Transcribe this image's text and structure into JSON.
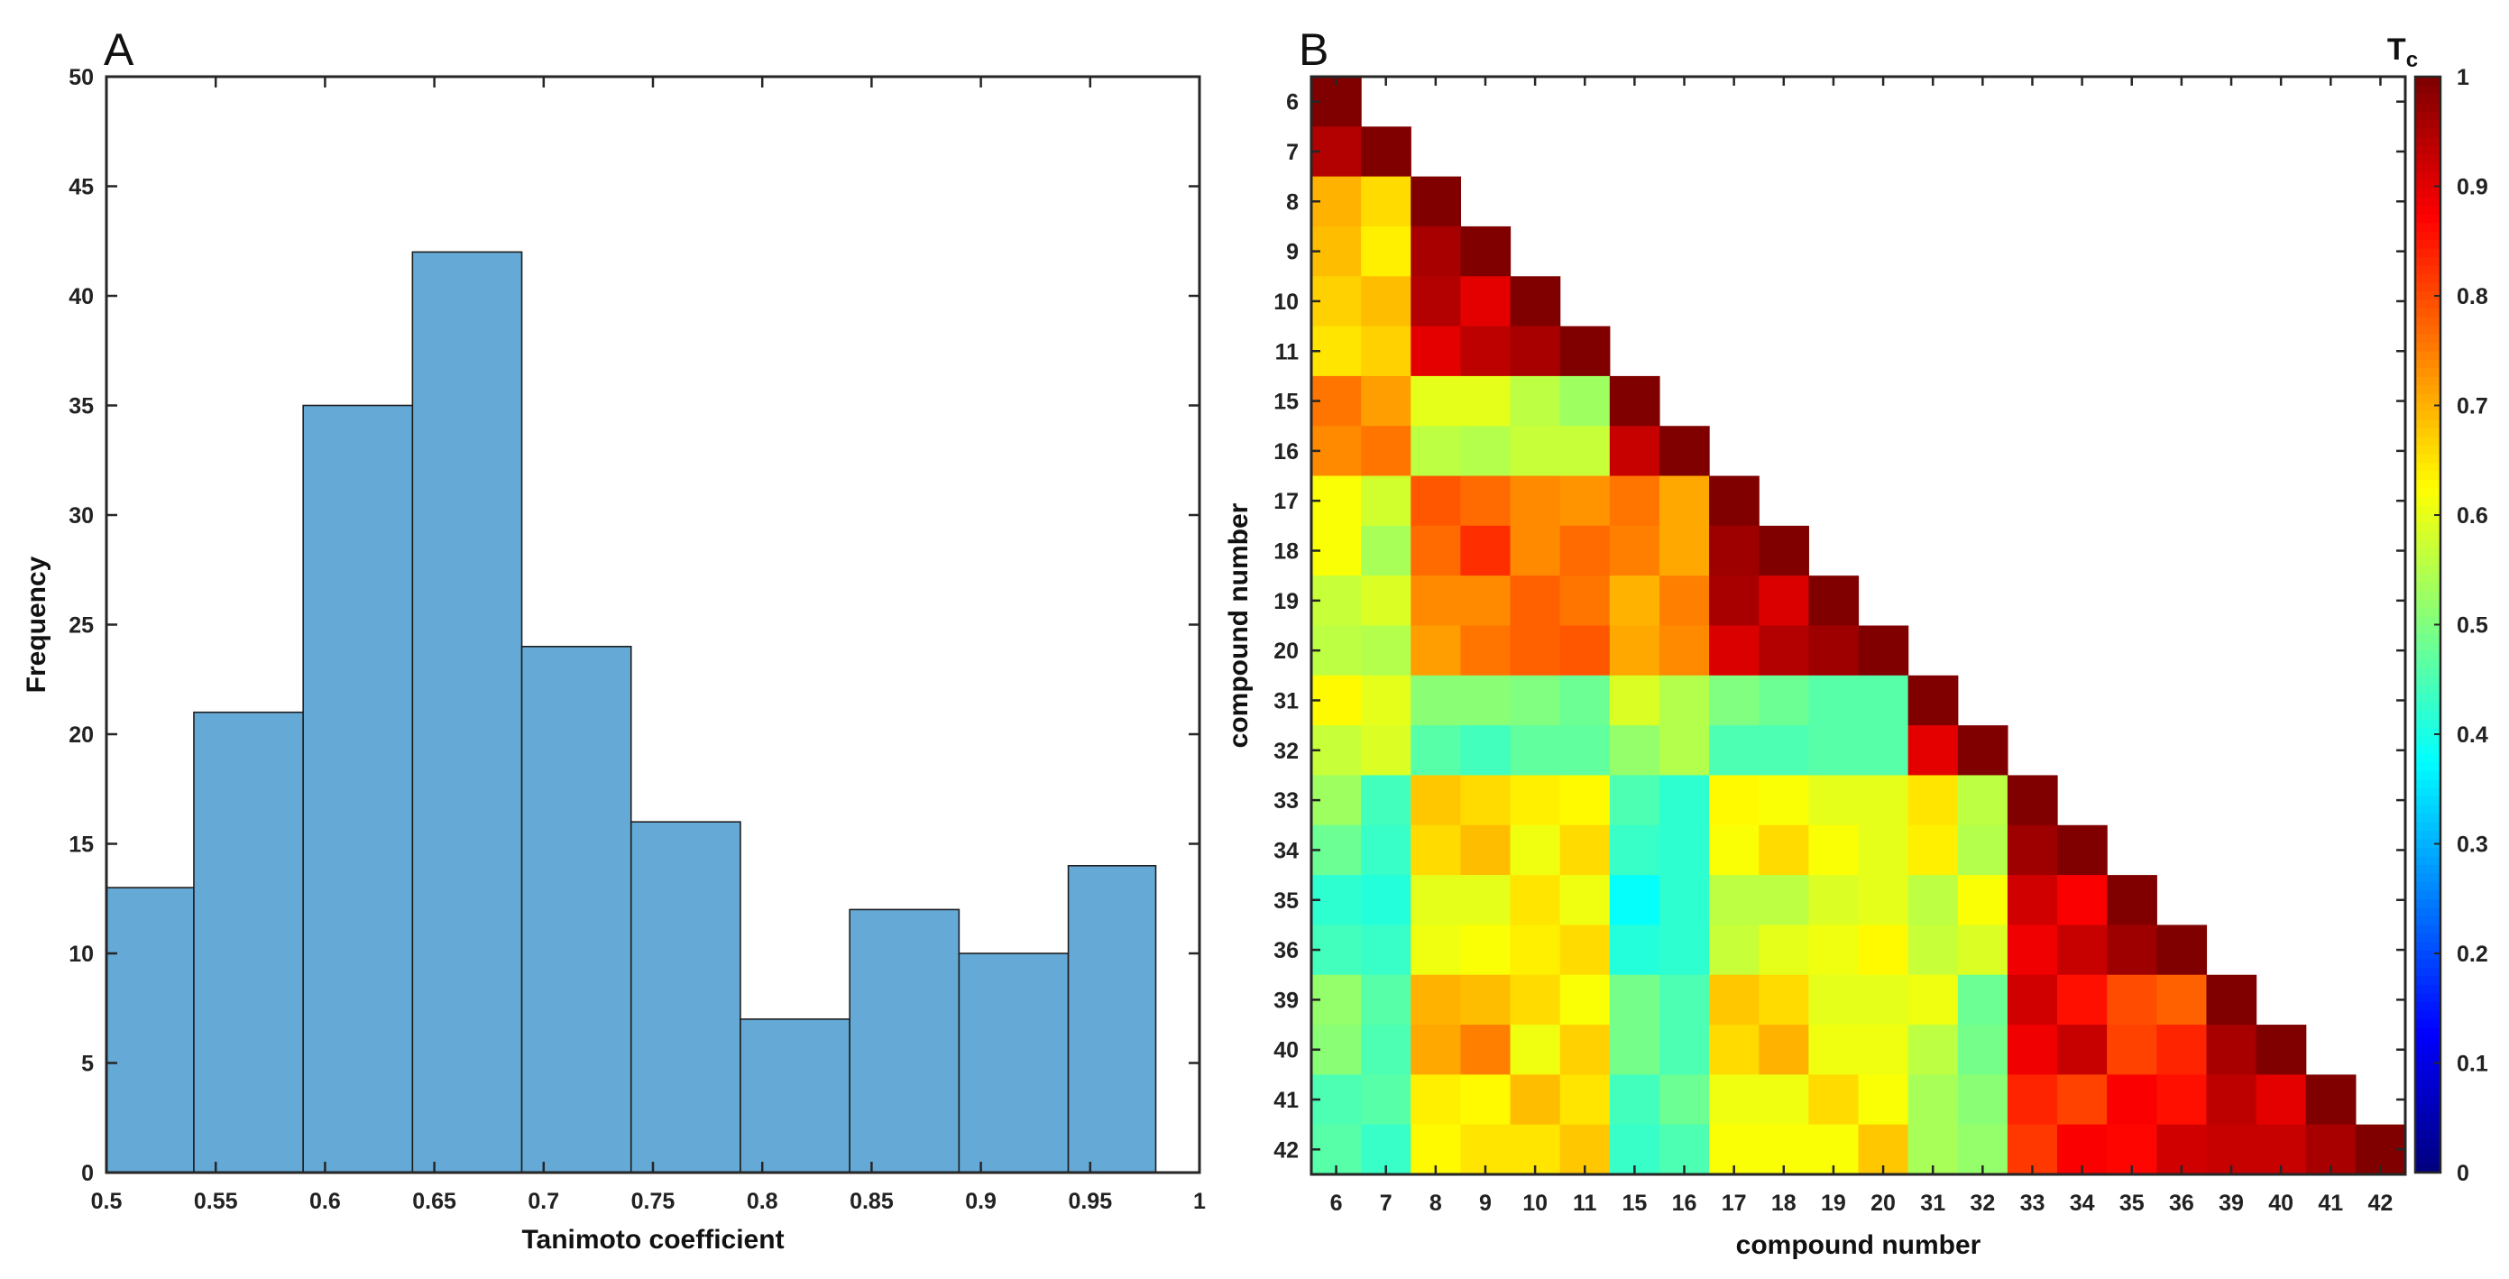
{
  "chart_data": [
    {
      "panel": "A",
      "type": "bar",
      "subtype": "histogram",
      "xlabel": "Tanimoto coefficient",
      "ylabel": "Frequency",
      "xlim": [
        0.5,
        1
      ],
      "ylim": [
        0,
        50
      ],
      "xticks": [
        "0.5",
        "0.55",
        "0.6",
        "0.65",
        "0.7",
        "0.75",
        "0.8",
        "0.85",
        "0.9",
        "0.95",
        "1"
      ],
      "yticks": [
        "0",
        "5",
        "10",
        "15",
        "20",
        "25",
        "30",
        "35",
        "40",
        "45",
        "50"
      ],
      "bin_edges": [
        0.5,
        0.54,
        0.59,
        0.64,
        0.69,
        0.74,
        0.79,
        0.84,
        0.89,
        0.94,
        0.98
      ],
      "values": [
        13,
        21,
        35,
        42,
        24,
        16,
        7,
        12,
        10,
        14
      ],
      "bar_color": "#65a9d7",
      "edge_color": "#1f1f1f"
    },
    {
      "panel": "B",
      "type": "heatmap",
      "xlabel": "compound number",
      "ylabel": "compound number",
      "compounds": [
        "6",
        "7",
        "8",
        "9",
        "10",
        "11",
        "15",
        "16",
        "17",
        "18",
        "19",
        "20",
        "31",
        "32",
        "33",
        "34",
        "35",
        "36",
        "39",
        "40",
        "41",
        "42"
      ],
      "matrix_lower": [
        [
          1.0
        ],
        [
          0.95,
          1.0
        ],
        [
          0.7,
          0.66,
          1.0
        ],
        [
          0.69,
          0.64,
          0.96,
          1.0
        ],
        [
          0.67,
          0.69,
          0.95,
          0.9,
          1.0
        ],
        [
          0.65,
          0.67,
          0.9,
          0.94,
          0.96,
          1.0
        ],
        [
          0.76,
          0.72,
          0.6,
          0.6,
          0.56,
          0.53,
          1.0
        ],
        [
          0.74,
          0.76,
          0.56,
          0.55,
          0.57,
          0.57,
          0.93,
          1.0
        ],
        [
          0.62,
          0.58,
          0.79,
          0.77,
          0.74,
          0.73,
          0.76,
          0.71,
          1.0
        ],
        [
          0.62,
          0.54,
          0.77,
          0.83,
          0.74,
          0.77,
          0.75,
          0.71,
          0.97,
          1.0
        ],
        [
          0.57,
          0.59,
          0.74,
          0.74,
          0.78,
          0.76,
          0.7,
          0.75,
          0.96,
          0.91,
          1.0
        ],
        [
          0.56,
          0.55,
          0.72,
          0.76,
          0.78,
          0.79,
          0.71,
          0.74,
          0.91,
          0.95,
          0.97,
          1.0
        ],
        [
          0.63,
          0.6,
          0.51,
          0.51,
          0.5,
          0.48,
          0.59,
          0.55,
          0.5,
          0.48,
          0.46,
          0.46,
          1.0
        ],
        [
          0.57,
          0.59,
          0.46,
          0.44,
          0.47,
          0.47,
          0.52,
          0.55,
          0.45,
          0.45,
          0.46,
          0.46,
          0.9,
          1.0
        ],
        [
          0.53,
          0.44,
          0.68,
          0.66,
          0.64,
          0.63,
          0.45,
          0.42,
          0.63,
          0.62,
          0.6,
          0.6,
          0.65,
          0.56,
          1.0
        ],
        [
          0.48,
          0.43,
          0.66,
          0.69,
          0.61,
          0.66,
          0.43,
          0.42,
          0.62,
          0.66,
          0.62,
          0.6,
          0.64,
          0.55,
          0.97,
          1.0
        ],
        [
          0.42,
          0.41,
          0.6,
          0.6,
          0.65,
          0.61,
          0.38,
          0.42,
          0.56,
          0.56,
          0.59,
          0.6,
          0.56,
          0.62,
          0.92,
          0.88,
          1.0
        ],
        [
          0.44,
          0.43,
          0.61,
          0.62,
          0.64,
          0.66,
          0.41,
          0.42,
          0.57,
          0.6,
          0.61,
          0.63,
          0.57,
          0.59,
          0.89,
          0.93,
          0.97,
          1.0
        ],
        [
          0.52,
          0.46,
          0.7,
          0.69,
          0.66,
          0.62,
          0.49,
          0.45,
          0.68,
          0.66,
          0.6,
          0.6,
          0.61,
          0.48,
          0.92,
          0.86,
          0.8,
          0.78,
          1.0
        ],
        [
          0.51,
          0.45,
          0.71,
          0.75,
          0.61,
          0.67,
          0.49,
          0.45,
          0.66,
          0.7,
          0.61,
          0.61,
          0.56,
          0.49,
          0.89,
          0.93,
          0.81,
          0.84,
          0.96,
          1.0
        ],
        [
          0.45,
          0.46,
          0.64,
          0.63,
          0.69,
          0.65,
          0.44,
          0.48,
          0.61,
          0.61,
          0.66,
          0.62,
          0.54,
          0.51,
          0.84,
          0.81,
          0.88,
          0.86,
          0.94,
          0.9,
          1.0
        ],
        [
          0.46,
          0.43,
          0.63,
          0.65,
          0.65,
          0.68,
          0.43,
          0.45,
          0.62,
          0.62,
          0.62,
          0.68,
          0.54,
          0.52,
          0.82,
          0.88,
          0.87,
          0.92,
          0.93,
          0.93,
          0.96,
          1.0
        ]
      ],
      "colormap": "jet",
      "colorbar": {
        "title": "T",
        "title_subscript": "c",
        "range": [
          0,
          1
        ],
        "ticks": [
          "0",
          "0.1",
          "0.2",
          "0.3",
          "0.4",
          "0.5",
          "0.6",
          "0.7",
          "0.8",
          "0.9",
          "1"
        ]
      }
    }
  ],
  "panel_labels": [
    "A",
    "B"
  ]
}
